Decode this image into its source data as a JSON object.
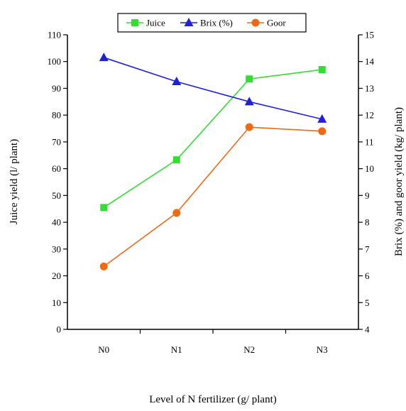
{
  "chart_data": {
    "type": "line",
    "title": "",
    "xlabel": "Level of N fertilizer (g/ plant)",
    "ylabel_left": "Juice yield (l/ plant)",
    "ylabel_right": "Brix (%) and goor yield (kg/ plant)",
    "categories": [
      "N0",
      "N1",
      "N2",
      "N3"
    ],
    "ylim_left": [
      0,
      110
    ],
    "ylim_right": [
      4,
      15
    ],
    "yticks_left": [
      0,
      10,
      20,
      30,
      40,
      50,
      60,
      70,
      80,
      90,
      100,
      110
    ],
    "yticks_right": [
      4,
      5,
      6,
      7,
      8,
      9,
      10,
      11,
      12,
      13,
      14,
      15
    ],
    "grid": false,
    "legend_position": "top",
    "series": [
      {
        "name": "Juice",
        "axis": "left",
        "color": "#33dd33",
        "marker": "square",
        "values": [
          45.5,
          63.3,
          93.5,
          97
        ]
      },
      {
        "name": "Brix (%)",
        "axis": "right",
        "color": "#1f1fdd",
        "marker": "triangle",
        "values": [
          14.15,
          13.25,
          12.5,
          11.85
        ]
      },
      {
        "name": "Goor",
        "axis": "right",
        "color": "#f06a14",
        "marker": "circle",
        "values": [
          6.35,
          8.35,
          11.55,
          11.4
        ]
      }
    ]
  }
}
